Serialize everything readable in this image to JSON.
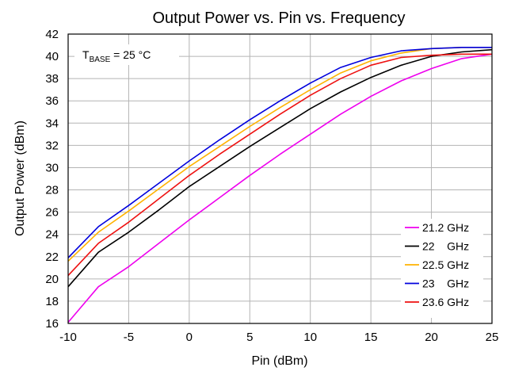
{
  "chart_data": {
    "type": "line",
    "title": "Output Power vs. Pin vs. Frequency",
    "xlabel": "Pin (dBm)",
    "ylabel": "Output Power (dBm)",
    "xlim": [
      -10,
      25
    ],
    "ylim": [
      16,
      42
    ],
    "xticks": [
      -10,
      -5,
      0,
      5,
      10,
      15,
      20,
      25
    ],
    "yticks": [
      16,
      18,
      20,
      22,
      24,
      26,
      28,
      30,
      32,
      34,
      36,
      38,
      40,
      42
    ],
    "grid": true,
    "legend_position": "bottom-right",
    "annotation": {
      "prefix": "T",
      "subscript": "BASE",
      "suffix": " = 25 °C"
    },
    "x": [
      -10,
      -7.5,
      -5,
      -2.5,
      0,
      2.5,
      5,
      7.5,
      10,
      12.5,
      15,
      17.5,
      20,
      22.5,
      25
    ],
    "series": [
      {
        "name": "21.2 GHz",
        "color": "#ee00ee",
        "values": [
          16.1,
          19.3,
          21.1,
          23.2,
          25.3,
          27.3,
          29.3,
          31.2,
          33.0,
          34.8,
          36.4,
          37.8,
          38.9,
          39.8,
          40.2
        ]
      },
      {
        "name": "22    GHz",
        "color": "#000000",
        "values": [
          19.3,
          22.4,
          24.2,
          26.2,
          28.3,
          30.1,
          31.9,
          33.6,
          35.3,
          36.8,
          38.1,
          39.2,
          40.0,
          40.4,
          40.6
        ]
      },
      {
        "name": "22.5 GHz",
        "color": "#ffb300",
        "values": [
          21.6,
          24.2,
          26.1,
          28.1,
          30.1,
          31.9,
          33.7,
          35.4,
          37.0,
          38.5,
          39.6,
          40.3,
          40.7,
          40.8,
          40.8
        ]
      },
      {
        "name": "23    GHz",
        "color": "#0000dd",
        "values": [
          21.9,
          24.7,
          26.6,
          28.6,
          30.6,
          32.5,
          34.3,
          36.0,
          37.6,
          39.0,
          39.9,
          40.5,
          40.7,
          40.8,
          40.8
        ]
      },
      {
        "name": "23.6 GHz",
        "color": "#ee1111",
        "values": [
          20.3,
          23.2,
          25.1,
          27.2,
          29.3,
          31.2,
          33.0,
          34.8,
          36.5,
          38.0,
          39.2,
          39.9,
          40.1,
          40.2,
          40.2
        ]
      }
    ]
  }
}
